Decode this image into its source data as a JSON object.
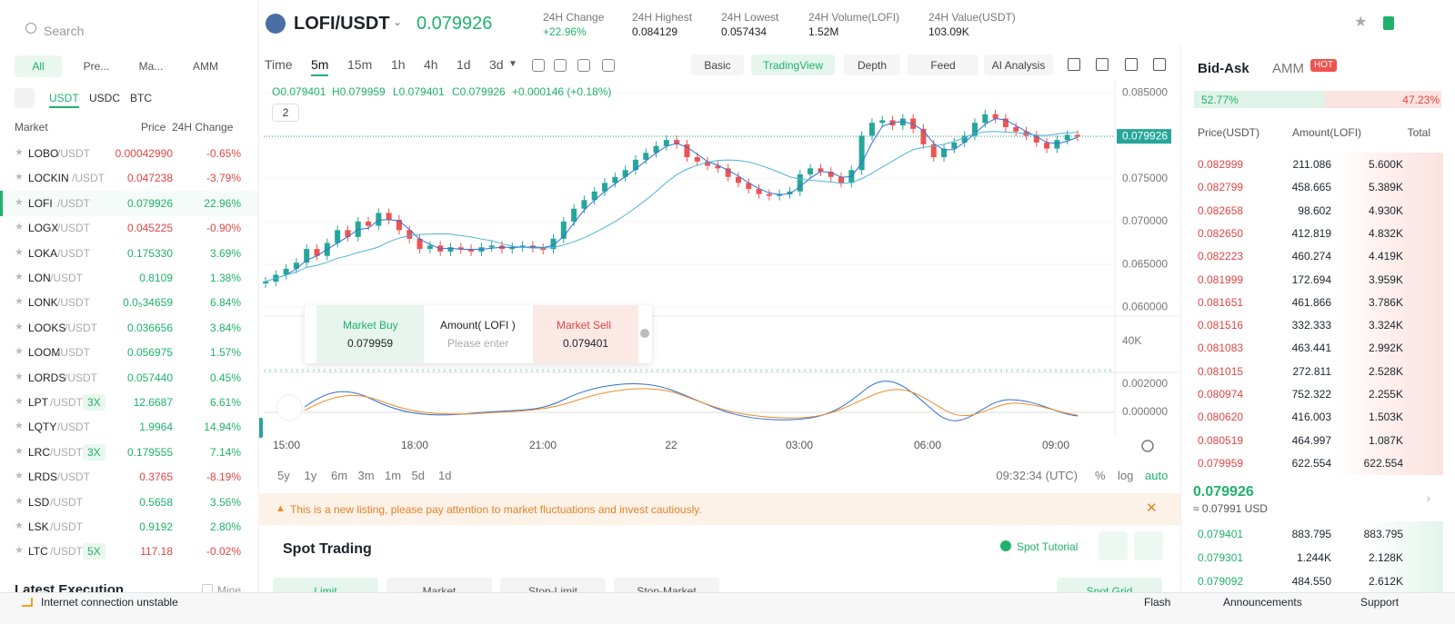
{
  "search": "Search",
  "market_tabs": [
    "All",
    "Pre...",
    "Ma...",
    "AMM"
  ],
  "quote_tabs": [
    "USDT",
    "USDC",
    "BTC"
  ],
  "market_columns": [
    "Market",
    "Price",
    "24H Change"
  ],
  "markets": [
    {
      "base": "LOBO",
      "quote": "/USDT",
      "price": "0.00042990",
      "change": "-0.65%"
    },
    {
      "base": "LOCKIN",
      "quote": "/USDT",
      "price": "0.047238",
      "change": "-3.79%"
    },
    {
      "base": "LOFI",
      "quote": "/USDT",
      "price": "0.079926",
      "change": "22.96%"
    },
    {
      "base": "LOGX",
      "quote": "/USDT",
      "price": "0.045225",
      "change": "-0.90%"
    },
    {
      "base": "LOKA",
      "quote": "/USDT",
      "price": "0.175330",
      "change": "3.69%"
    },
    {
      "base": "LON",
      "quote": "/USDT",
      "price": "0.8109",
      "change": "1.38%"
    },
    {
      "base": "LONK",
      "quote": "/USDT",
      "price": "0.0₅34659",
      "change": "6.84%"
    },
    {
      "base": "LOOKS",
      "quote": "/USDT",
      "price": "0.036656",
      "change": "3.84%"
    },
    {
      "base": "LOOM",
      "quote": "/USDT",
      "price": "0.056975",
      "change": "1.57%"
    },
    {
      "base": "LORDS",
      "quote": "/USDT",
      "price": "0.057440",
      "change": "0.45%"
    },
    {
      "base": "LPT",
      "quote": "/USDT",
      "leverage": "3X",
      "price": "12.6687",
      "change": "6.61%"
    },
    {
      "base": "LQTY",
      "quote": "/USDT",
      "price": "1.9964",
      "change": "14.94%"
    },
    {
      "base": "LRC",
      "quote": "/USDT",
      "leverage": "3X",
      "price": "0.179555",
      "change": "7.14%"
    },
    {
      "base": "LRDS",
      "quote": "/USDT",
      "price": "0.3765",
      "change": "-8.19%"
    },
    {
      "base": "LSD",
      "quote": "/USDT",
      "price": "0.5658",
      "change": "3.56%"
    },
    {
      "base": "LSK",
      "quote": "/USDT",
      "price": "0.9192",
      "change": "2.80%"
    },
    {
      "base": "LTC",
      "quote": "/USDT",
      "leverage": "5X",
      "price": "117.18",
      "change": "-0.02%"
    }
  ],
  "latest_execution": "Latest Execution",
  "mine": "Mine",
  "header": {
    "pair": "LOFI/USDT",
    "price": "0.079926",
    "stats": [
      {
        "label": "24H Change",
        "value": "+22.96%"
      },
      {
        "label": "24H Highest",
        "value": "0.084129"
      },
      {
        "label": "24H Lowest",
        "value": "0.057434"
      },
      {
        "label": "24H Volume(LOFI)",
        "value": "1.52M"
      },
      {
        "label": "24H Value(USDT)",
        "value": "103.09K"
      }
    ]
  },
  "toolbar": {
    "intervals": [
      "Time",
      "5m",
      "15m",
      "1h",
      "4h",
      "1d",
      "3d"
    ],
    "views": [
      "Basic",
      "TradingView",
      "Depth",
      "Feed",
      "AI Analysis"
    ]
  },
  "ohlc": {
    "open": "O0.079401",
    "high": "H0.079959",
    "low": "L0.079401",
    "close": "C0.079926",
    "change": "+0.000146 (+0.18%)"
  },
  "indicator_count": "2",
  "quick_trade": {
    "buy_label": "Market Buy",
    "buy_price": "0.079959",
    "amount_label": "Amount( LOFI )",
    "amount_placeholder": "Please enter",
    "sell_label": "Market Sell",
    "sell_price": "0.079401"
  },
  "chart_data": {
    "type": "candlestick",
    "x_labels": [
      "15:00",
      "18:00",
      "21:00",
      "22",
      "03:00",
      "06:00",
      "09:00"
    ],
    "closes": [
      0.063,
      0.0638,
      0.0645,
      0.0652,
      0.0668,
      0.066,
      0.0675,
      0.069,
      0.0682,
      0.07,
      0.0695,
      0.071,
      0.0702,
      0.069,
      0.068,
      0.0668,
      0.0672,
      0.0665,
      0.067,
      0.0668,
      0.0665,
      0.067,
      0.0672,
      0.0668,
      0.067,
      0.0672,
      0.0669,
      0.0668,
      0.068,
      0.07,
      0.0715,
      0.0725,
      0.0735,
      0.0745,
      0.0752,
      0.076,
      0.0772,
      0.078,
      0.0788,
      0.0795,
      0.079,
      0.0775,
      0.077,
      0.0765,
      0.0762,
      0.0752,
      0.0745,
      0.0738,
      0.0732,
      0.073,
      0.0732,
      0.0735,
      0.0755,
      0.0762,
      0.0758,
      0.0752,
      0.0745,
      0.076,
      0.08,
      0.0815,
      0.0818,
      0.0812,
      0.082,
      0.0808,
      0.079,
      0.0775,
      0.0785,
      0.0792,
      0.08,
      0.0815,
      0.0825,
      0.082,
      0.081,
      0.0805,
      0.08,
      0.0792,
      0.0785,
      0.0795,
      0.0801,
      0.0799
    ],
    "ylim": [
      0.0593,
      0.0865
    ],
    "yticks": [
      {
        "value": 0.06,
        "label": "0.060000"
      },
      {
        "value": 0.065,
        "label": "0.065000"
      },
      {
        "value": 0.07,
        "label": "0.070000"
      },
      {
        "value": 0.075,
        "label": "0.075000"
      },
      {
        "value": 0.08,
        "label": "0.080000"
      },
      {
        "value": 0.085,
        "label": "0.085000"
      }
    ],
    "last_price": {
      "value": 0.079926,
      "label": "0.079926"
    },
    "up_color": "#26a69a",
    "down_color": "#ef5350",
    "volume_tick": "40K",
    "macd_ticks": [
      "0.002000",
      "0.000000"
    ]
  },
  "ranges": [
    "5y",
    "1y",
    "6m",
    "3m",
    "1m",
    "5d",
    "1d"
  ],
  "clock": "09:32:34 (UTC)",
  "scale_options": [
    "%",
    "log",
    "auto"
  ],
  "notice": "This is a new listing, please pay attention to market fluctuations and invest cautiously.",
  "spot": {
    "title": "Spot Trading",
    "tutorial": "Spot Tutorial",
    "order_tabs": [
      "Limit",
      "Market",
      "Stop-Limit",
      "Stop-Market"
    ],
    "grid": "Spot Grid"
  },
  "orderbook": {
    "tabs": [
      "Bid-Ask",
      "AMM"
    ],
    "badge": "HOT",
    "buy_ratio": {
      "value": 52.77,
      "label": "52.77%"
    },
    "sell_ratio": {
      "value": 47.23,
      "label": "47.23%"
    },
    "columns": [
      "Price(USDT)",
      "Amount(LOFI)",
      "Total"
    ],
    "asks": [
      [
        "0.082999",
        "211.086",
        "5.600K"
      ],
      [
        "0.082799",
        "458.665",
        "5.389K"
      ],
      [
        "0.082658",
        "98.602",
        "4.930K"
      ],
      [
        "0.082650",
        "412.819",
        "4.832K"
      ],
      [
        "0.082223",
        "460.274",
        "4.419K"
      ],
      [
        "0.081999",
        "172.694",
        "3.959K"
      ],
      [
        "0.081651",
        "461.866",
        "3.786K"
      ],
      [
        "0.081516",
        "332.333",
        "3.324K"
      ],
      [
        "0.081083",
        "463.441",
        "2.992K"
      ],
      [
        "0.081015",
        "272.811",
        "2.528K"
      ],
      [
        "0.080974",
        "752.322",
        "2.255K"
      ],
      [
        "0.080620",
        "416.003",
        "1.503K"
      ],
      [
        "0.080519",
        "464.997",
        "1.087K"
      ],
      [
        "0.079959",
        "622.554",
        "622.554"
      ]
    ],
    "mid_price": "0.079926",
    "mid_usd": "≈ 0.07991 USD",
    "bids": [
      [
        "0.079401",
        "883.795",
        "883.795"
      ],
      [
        "0.079301",
        "1.244K",
        "2.128K"
      ],
      [
        "0.079092",
        "484.550",
        "2.612K"
      ]
    ]
  },
  "status": {
    "connection": "Internet connection unstable",
    "links": [
      "Flash",
      "Announcements",
      "Support"
    ]
  }
}
